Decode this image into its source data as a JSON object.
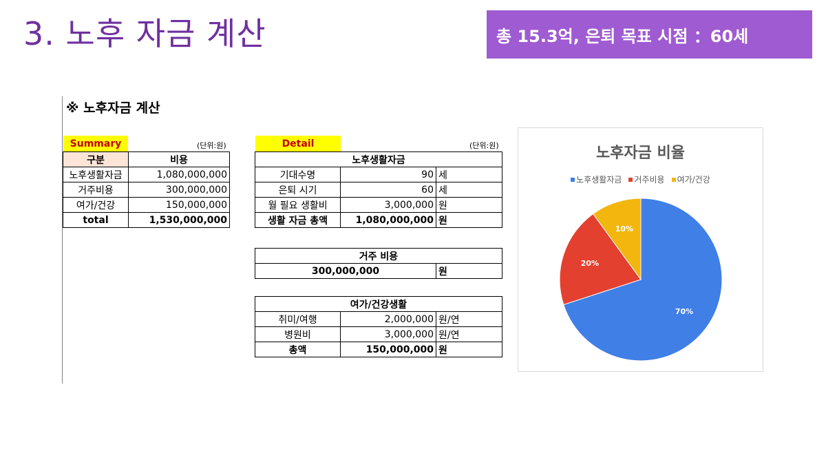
{
  "slide": {
    "title": "3. 노후 자금 계산",
    "banner": "총 15.3억, 은퇴 목표 시점 ：60세",
    "sheet_heading": "※ 노후자금 계산"
  },
  "summary": {
    "tag": "Summary",
    "unit": "(단위:원)",
    "headers": [
      "구분",
      "비용"
    ],
    "rows": [
      {
        "label": "노후생활자금",
        "value": "1,080,000,000"
      },
      {
        "label": "거주비용",
        "value": "300,000,000"
      },
      {
        "label": "여가/건강",
        "value": "150,000,000"
      }
    ],
    "total": {
      "label": "total",
      "value": "1,530,000,000"
    }
  },
  "detail": {
    "tag": "Detail",
    "unit": "(단위:원)",
    "living": {
      "title": "노후생활자금",
      "rows": [
        {
          "label": "기대수명",
          "value": "90",
          "unit": "세"
        },
        {
          "label": "은퇴 시기",
          "value": "60",
          "unit": "세"
        },
        {
          "label": "월 필요 생활비",
          "value": "3,000,000",
          "unit": "원"
        }
      ],
      "total": {
        "label": "생활 자금 총액",
        "value": "1,080,000,000",
        "unit": "원"
      }
    },
    "housing": {
      "title": "거주 비용",
      "value": "300,000,000",
      "unit": "원"
    },
    "leisure": {
      "title": "여가/건강생활",
      "rows": [
        {
          "label": "취미/여행",
          "value": "2,000,000",
          "unit": "원/연"
        },
        {
          "label": "병원비",
          "value": "3,000,000",
          "unit": "원/연"
        }
      ],
      "total": {
        "label": "총액",
        "value": "150,000,000",
        "unit": "원"
      }
    }
  },
  "chart_data": {
    "type": "pie",
    "title": "노후자금 비율",
    "legend_position": "top",
    "categories": [
      "노후생활자금",
      "거주비용",
      "여가/건강"
    ],
    "values": [
      70,
      20,
      10
    ],
    "labels": [
      "70%",
      "20%",
      "10%"
    ],
    "colors": [
      "#3f7fe6",
      "#e4402f",
      "#f2b60f"
    ]
  }
}
